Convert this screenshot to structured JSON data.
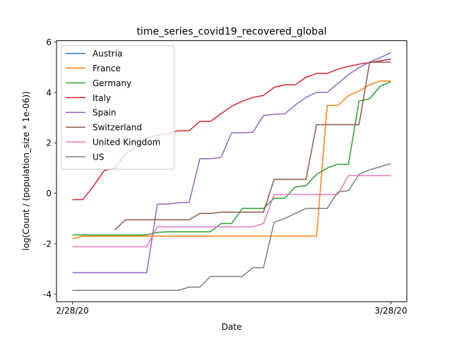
{
  "chart_data": {
    "type": "line",
    "title": "time_series_covid19_recovered_global",
    "xlabel": "Date",
    "ylabel": "log(Count /  (population_size * 1e-06))",
    "x_ticks": [
      "2/28/20",
      "3/28/20"
    ],
    "x_tick_positions": [
      0,
      30
    ],
    "xlim": [
      -1.5,
      31.5
    ],
    "y_ticks": [
      -4,
      -2,
      0,
      2,
      4,
      6
    ],
    "ylim": [
      -4.3,
      6.05
    ],
    "grid": false,
    "legend_position": "top-left",
    "x": [
      0,
      1,
      2,
      3,
      4,
      5,
      6,
      7,
      8,
      9,
      10,
      11,
      12,
      13,
      14,
      15,
      16,
      17,
      18,
      19,
      20,
      21,
      22,
      23,
      24,
      25,
      26,
      27,
      28,
      29,
      30
    ],
    "series": [
      {
        "name": "Austria",
        "color": "#1f77b4",
        "values": [
          null,
          null,
          null,
          null,
          null,
          null,
          null,
          null,
          null,
          null,
          null,
          null,
          null,
          null,
          null,
          null,
          null,
          null,
          null,
          null,
          null,
          null,
          null,
          null,
          null,
          null,
          null,
          null,
          null,
          null,
          null
        ]
      },
      {
        "name": "France",
        "color": "#ff7f0e",
        "values": [
          -1.8,
          -1.7,
          -1.7,
          -1.7,
          -1.7,
          -1.7,
          -1.7,
          -1.7,
          -1.7,
          -1.7,
          -1.7,
          -1.7,
          -1.7,
          -1.7,
          -1.7,
          -1.7,
          -1.7,
          -1.7,
          -1.7,
          -1.7,
          -1.7,
          -1.7,
          -1.7,
          -1.7,
          3.48,
          3.48,
          3.87,
          4.05,
          4.3,
          4.45,
          4.45
        ]
      },
      {
        "name": "Germany",
        "color": "#2ca02c",
        "values": [
          -1.65,
          -1.65,
          -1.65,
          -1.65,
          -1.65,
          -1.65,
          -1.65,
          -1.65,
          -1.55,
          -1.53,
          -1.53,
          -1.53,
          -1.53,
          -1.53,
          -1.2,
          -1.2,
          -0.6,
          -0.6,
          -0.6,
          -0.2,
          -0.2,
          0.25,
          0.3,
          0.75,
          1.0,
          1.15,
          1.15,
          3.65,
          3.75,
          4.25,
          4.42
        ]
      },
      {
        "name": "Italy",
        "color": "#d62728",
        "values": [
          -0.25,
          -0.25,
          0.3,
          0.9,
          1.0,
          1.55,
          1.85,
          2.2,
          2.3,
          2.35,
          2.48,
          2.48,
          2.85,
          2.85,
          3.15,
          3.45,
          3.65,
          3.8,
          3.88,
          4.2,
          4.3,
          4.3,
          4.6,
          4.75,
          4.75,
          4.92,
          5.03,
          5.12,
          5.18,
          5.25,
          5.32
        ]
      },
      {
        "name": "Spain",
        "color": "#9467bd",
        "values": [
          -3.15,
          -3.15,
          -3.15,
          -3.15,
          -3.15,
          -3.15,
          -3.15,
          -3.15,
          -0.43,
          -0.43,
          -0.37,
          -0.37,
          1.37,
          1.37,
          1.42,
          2.4,
          2.4,
          2.42,
          3.08,
          3.13,
          3.15,
          3.5,
          3.8,
          4.0,
          4.0,
          4.35,
          4.7,
          4.98,
          5.2,
          5.38,
          5.57
        ]
      },
      {
        "name": "Switzerland",
        "color": "#8c564b",
        "values": [
          null,
          null,
          null,
          null,
          -1.45,
          -1.05,
          -1.05,
          -1.05,
          -1.05,
          -1.05,
          -1.05,
          -1.05,
          -0.8,
          -0.8,
          -0.75,
          -0.75,
          -0.75,
          -0.75,
          -0.75,
          0.55,
          0.55,
          0.55,
          0.55,
          2.72,
          2.72,
          2.72,
          2.72,
          2.72,
          5.2,
          5.2,
          5.2
        ]
      },
      {
        "name": "United Kingdom",
        "color": "#e377c2",
        "values": [
          -2.12,
          -2.12,
          -2.12,
          -2.12,
          -2.12,
          -2.12,
          -2.12,
          -2.12,
          -1.33,
          -1.33,
          -1.33,
          -1.33,
          -1.33,
          -1.33,
          -1.33,
          -1.33,
          -1.33,
          -1.33,
          -1.2,
          -0.05,
          -0.05,
          -0.05,
          -0.05,
          -0.05,
          -0.05,
          -0.05,
          0.7,
          0.7,
          0.7,
          0.7,
          0.7
        ]
      },
      {
        "name": "US",
        "color": "#7f7f7f",
        "values": [
          -3.85,
          -3.85,
          -3.85,
          -3.85,
          -3.85,
          -3.85,
          -3.85,
          -3.85,
          -3.85,
          -3.85,
          -3.85,
          -3.72,
          -3.72,
          -3.3,
          -3.3,
          -3.3,
          -3.3,
          -2.95,
          -2.95,
          -1.15,
          -1.0,
          -0.8,
          -0.6,
          -0.6,
          -0.6,
          0.05,
          0.1,
          0.75,
          0.93,
          1.05,
          1.18
        ]
      }
    ]
  }
}
